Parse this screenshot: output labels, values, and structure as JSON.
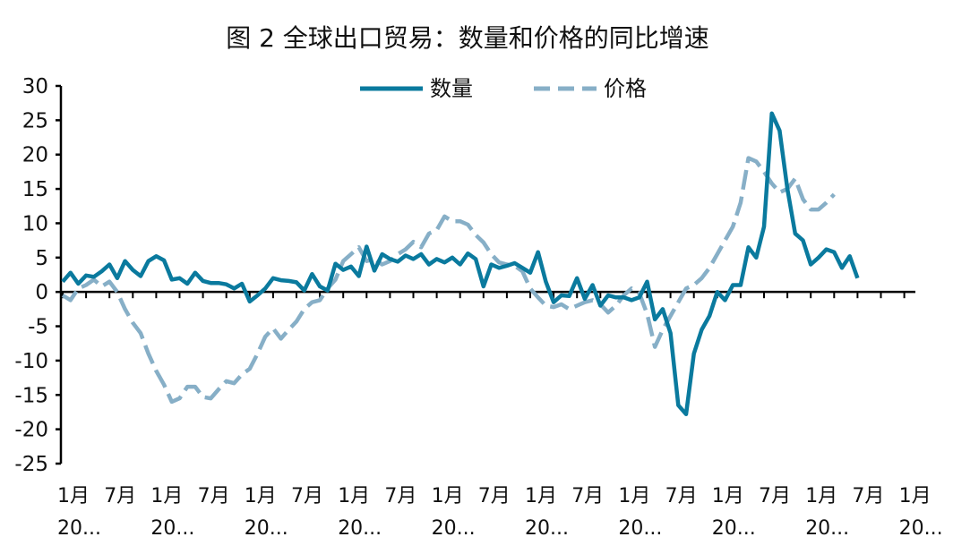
{
  "chart_data": {
    "type": "line",
    "title": "图 2 全球出口贸易：数量和价格的同比增速",
    "xlabel": "",
    "ylabel": "",
    "ylim": [
      -25,
      30
    ],
    "yticks": [
      "30",
      "25",
      "20",
      "15",
      "10",
      "5",
      "0",
      "-5",
      "-10",
      "-15",
      "-20",
      "-25"
    ],
    "x_tick_labels": [
      {
        "month": "1月",
        "year": "20..."
      },
      {
        "month": "7月",
        "year": ""
      },
      {
        "month": "1月",
        "year": "20..."
      },
      {
        "month": "7月",
        "year": ""
      },
      {
        "month": "1月",
        "year": "20..."
      },
      {
        "month": "7月",
        "year": ""
      },
      {
        "month": "1月",
        "year": "20..."
      },
      {
        "month": "7月",
        "year": ""
      },
      {
        "month": "1月",
        "year": "20..."
      },
      {
        "month": "7月",
        "year": ""
      },
      {
        "month": "1月",
        "year": "20..."
      },
      {
        "month": "7月",
        "year": ""
      },
      {
        "month": "1月",
        "year": "20..."
      },
      {
        "month": "7月",
        "year": ""
      },
      {
        "month": "1月",
        "year": "20..."
      },
      {
        "month": "7月",
        "year": ""
      },
      {
        "month": "1月",
        "year": "20..."
      },
      {
        "month": "7月",
        "year": ""
      },
      {
        "month": "1月",
        "year": "20..."
      }
    ],
    "legend_position": "top",
    "grid": false,
    "series": [
      {
        "name": "数量",
        "color": "#0a7a9e",
        "style": "solid",
        "values": [
          1.5,
          2.8,
          1.2,
          2.4,
          2.2,
          3.0,
          4.0,
          2.0,
          4.5,
          3.2,
          2.3,
          4.5,
          5.2,
          4.6,
          1.8,
          2.0,
          1.2,
          2.8,
          1.6,
          1.3,
          1.3,
          1.1,
          0.5,
          1.2,
          -1.4,
          -0.5,
          0.5,
          2.0,
          1.7,
          1.6,
          1.4,
          0.2,
          2.6,
          0.8,
          0.2,
          4.1,
          3.2,
          3.7,
          2.3,
          6.6,
          3.1,
          5.5,
          4.8,
          4.4,
          5.3,
          4.8,
          5.5,
          4.0,
          4.8,
          4.3,
          5.0,
          4.0,
          5.6,
          4.8,
          0.8,
          4.0,
          3.5,
          3.8,
          4.2,
          3.5,
          2.8,
          5.8,
          1.5,
          -1.5,
          -0.5,
          -0.6,
          2.0,
          -1.0,
          1.0,
          -2.0,
          -0.5,
          -0.8,
          -0.8,
          -1.2,
          -0.8,
          1.5,
          -4.0,
          -2.5,
          -6.0,
          -16.5,
          -17.8,
          -9.0,
          -5.5,
          -3.5,
          0.0,
          -1.2,
          1.0,
          1.0,
          6.5,
          5.0,
          9.5,
          26.0,
          23.5,
          15.0,
          8.5,
          7.5,
          4.0,
          5.0,
          6.2,
          5.8,
          3.5,
          5.2,
          2.0
        ],
        "ranges": [
          [
            0,
            103
          ]
        ]
      },
      {
        "name": "价格",
        "color": "#87afc7",
        "style": "dashed",
        "values": [
          -0.5,
          -1.2,
          0.5,
          1.0,
          1.8,
          0.8,
          1.5,
          0.0,
          -2.5,
          -4.5,
          -6.0,
          -9.0,
          -11.5,
          -13.5,
          -16.0,
          -15.5,
          -13.8,
          -13.8,
          -15.3,
          -15.5,
          -14.2,
          -13.0,
          -13.3,
          -12.0,
          -11.2,
          -9.0,
          -6.5,
          -5.3,
          -6.8,
          -5.5,
          -4.3,
          -2.5,
          -1.5,
          -1.2,
          0.5,
          1.8,
          4.5,
          5.5,
          6.5,
          4.5,
          4.8,
          4.0,
          4.5,
          5.5,
          6.2,
          7.3,
          6.5,
          8.5,
          9.0,
          11.0,
          10.3,
          10.3,
          9.8,
          8.3,
          7.2,
          5.5,
          4.3,
          4.0,
          3.8,
          3.0,
          0.5,
          -0.8,
          -2.0,
          -2.2,
          -1.8,
          -2.5,
          -2.0,
          -1.5,
          -1.2,
          -1.8,
          -3.0,
          -2.0,
          -0.5,
          0.5,
          -0.2,
          -3.2,
          -8.0,
          -5.5,
          -3.5,
          -1.5,
          0.5,
          1.0,
          2.0,
          3.5,
          5.5,
          7.5,
          9.5,
          13.0,
          19.5,
          19.0,
          17.5,
          15.8,
          14.5,
          15.0,
          16.5,
          13.5,
          12.0,
          12.0,
          13.0,
          14.2
        ],
        "ranges": [
          [
            0,
            99
          ]
        ]
      }
    ]
  }
}
